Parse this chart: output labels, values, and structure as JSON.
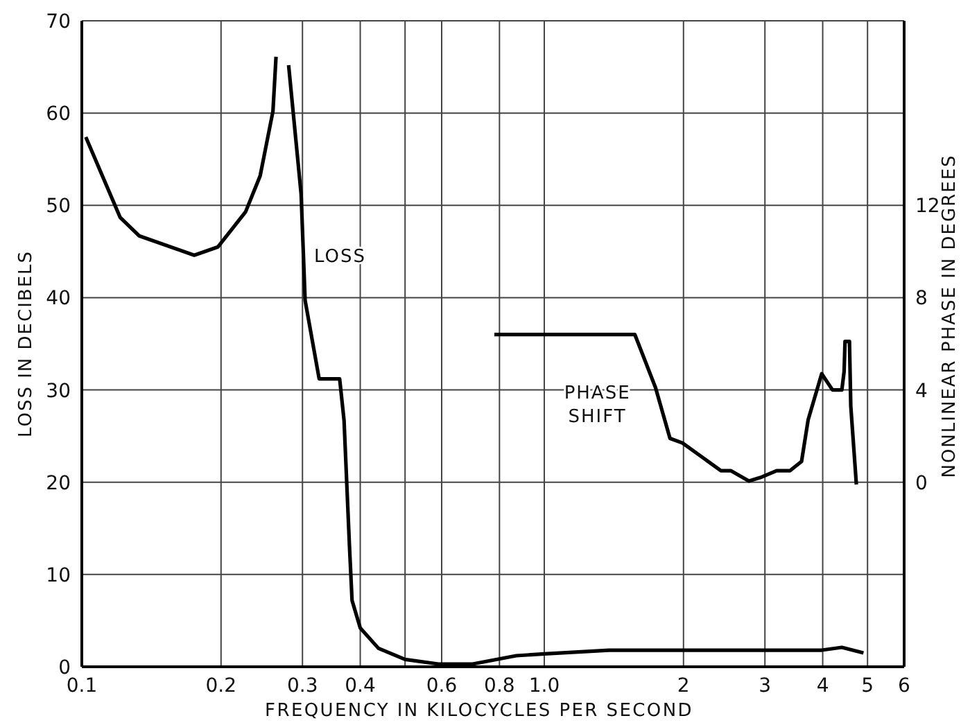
{
  "chart_data": {
    "type": "line",
    "xlabel": "FREQUENCY IN KILOCYCLES PER SECOND",
    "ylabel": "LOSS IN DECIBELS",
    "y2label": "NONLINEAR PHASE IN DEGREES",
    "log": "x",
    "grid": true,
    "marker": "none",
    "line_style": "solid",
    "xlim": [
      0.1,
      6
    ],
    "xticks": [
      0.1,
      0.2,
      0.3,
      0.4,
      {
        "value": 0.5,
        "label": null
      },
      0.6,
      0.8,
      {
        "value": 1,
        "label": "1.0"
      },
      2,
      3,
      4,
      5,
      6
    ],
    "ylim": [
      0,
      70
    ],
    "yticks": [
      0,
      10,
      20,
      30,
      40,
      50,
      60,
      70
    ],
    "y2lim": [
      -8,
      20
    ],
    "y2ticks": [
      0,
      4,
      8,
      12
    ],
    "annotations": [
      "LOSS",
      "PHASE SHIFT"
    ],
    "series": [
      {
        "color": "#000000",
        "x": [
          0.102,
          0.121,
          0.133,
          0.175,
          0.197,
          0.226,
          0.243,
          0.259,
          0.263,
          0.27,
          0.28,
          0.298,
          0.304,
          0.326,
          0.361,
          0.369,
          0.379,
          0.384,
          0.4,
          0.438,
          0.5,
          0.59,
          0.7,
          0.87,
          1.0,
          1.38,
          1.99,
          3.98,
          4.4,
          4.9
        ],
        "values": [
          57.4,
          48.7,
          46.7,
          44.6,
          45.5,
          49.3,
          53.2,
          60.2,
          66.1,
          null,
          65.2,
          51.2,
          39.7,
          31.2,
          31.2,
          26.7,
          13.2,
          7.2,
          4.2,
          2,
          0.8,
          0.3,
          0.3,
          1.2,
          1.4,
          1.8,
          1.8,
          1.8,
          2.1,
          1.5
        ]
      },
      {
        "color": "#000000",
        "axis": "y2",
        "x": [
          0.78,
          1.57,
          1.74,
          1.87,
          1.99,
          2.41,
          2.53,
          2.77,
          2.93,
          3.18,
          3.4,
          3.6,
          3.72,
          3.98,
          4.2,
          4.4,
          4.45,
          4.47,
          4.57,
          4.6,
          4.73
        ],
        "values": [
          6.4,
          6.4,
          4.1,
          1.9,
          1.7,
          0.5,
          0.5,
          0.05,
          0.2,
          0.5,
          0.5,
          0.9,
          2.7,
          4.7,
          4,
          4,
          4.8,
          6.1,
          6.1,
          3.3,
          -0.1
        ]
      }
    ]
  }
}
